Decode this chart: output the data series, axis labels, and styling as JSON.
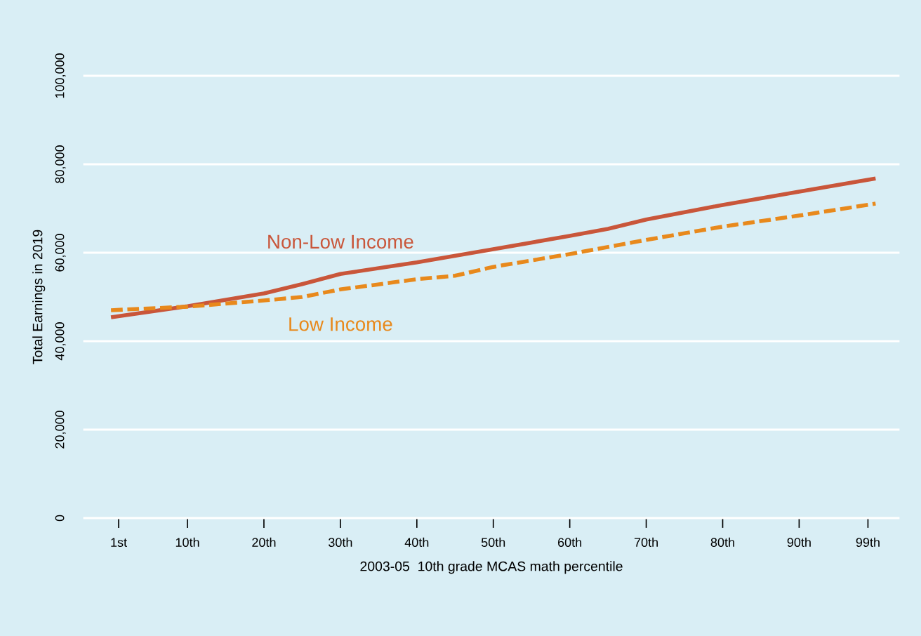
{
  "chart_data": {
    "type": "line",
    "xlabel": "2003-05  10th grade MCAS math percentile",
    "ylabel": "Total Earnings in 2019",
    "series": [
      {
        "name": "Non-Low Income",
        "color": "#c9563a",
        "line_style": "solid",
        "x": [
          0,
          10,
          20,
          25,
          30,
          40,
          50,
          60,
          65,
          70,
          80,
          90,
          100
        ],
        "values": [
          45400,
          47900,
          50800,
          52900,
          55200,
          57800,
          60800,
          63800,
          65400,
          67500,
          70800,
          73800,
          76800
        ]
      },
      {
        "name": "Low Income",
        "color": "#e8891c",
        "line_style": "dashed",
        "x": [
          0,
          10,
          20,
          25,
          30,
          40,
          45,
          50,
          60,
          70,
          80,
          90,
          100
        ],
        "values": [
          47000,
          47800,
          49200,
          50000,
          51700,
          54000,
          54800,
          56800,
          59700,
          62900,
          65900,
          68400,
          71100
        ]
      }
    ],
    "xlim": [
      -3.5,
      103
    ],
    "xticks": [
      {
        "value": 1,
        "label": "1st"
      },
      {
        "value": 10,
        "label": "10th"
      },
      {
        "value": 20,
        "label": "20th"
      },
      {
        "value": 30,
        "label": "30th"
      },
      {
        "value": 40,
        "label": "40th"
      },
      {
        "value": 50,
        "label": "50th"
      },
      {
        "value": 60,
        "label": "60th"
      },
      {
        "value": 70,
        "label": "70th"
      },
      {
        "value": 80,
        "label": "80th"
      },
      {
        "value": 90,
        "label": "90th"
      },
      {
        "value": 99,
        "label": "99th"
      }
    ],
    "ylim": [
      0,
      100000
    ],
    "yticks": [
      {
        "value": 0,
        "label": "0"
      },
      {
        "value": 20000,
        "label": "20,000"
      },
      {
        "value": 40000,
        "label": "40,000"
      },
      {
        "value": 60000,
        "label": "60,000"
      },
      {
        "value": 80000,
        "label": "80,000"
      },
      {
        "value": 100000,
        "label": "100,000"
      }
    ],
    "grid": "y",
    "legend": false
  }
}
